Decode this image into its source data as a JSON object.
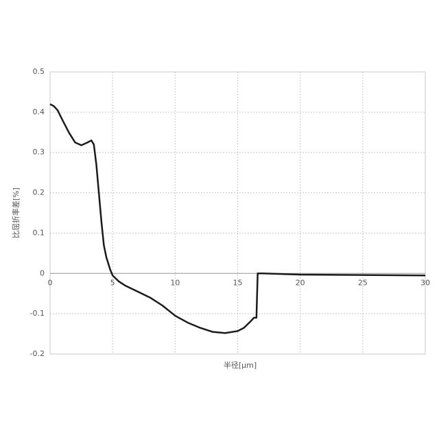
{
  "chart_data": {
    "type": "line",
    "xlabel": "半径[μm]",
    "ylabel": "比屈折率差[%]",
    "x": [
      0,
      0.3,
      0.6,
      1,
      1.5,
      2,
      2.5,
      3,
      3.3,
      3.5,
      3.7,
      3.9,
      4.1,
      4.3,
      4.5,
      4.8,
      5,
      5.5,
      6,
      7,
      8,
      9,
      10,
      11,
      12,
      13,
      14,
      15,
      15.5,
      16,
      16.3,
      16.5,
      16.6,
      17,
      20,
      25,
      30
    ],
    "series": [
      {
        "color": "#1a1a1a",
        "values": [
          0.42,
          0.415,
          0.405,
          0.38,
          0.35,
          0.325,
          0.318,
          0.325,
          0.33,
          0.32,
          0.27,
          0.2,
          0.13,
          0.07,
          0.04,
          0.01,
          -0.005,
          -0.02,
          -0.03,
          -0.045,
          -0.06,
          -0.08,
          -0.105,
          -0.122,
          -0.135,
          -0.145,
          -0.148,
          -0.143,
          -0.135,
          -0.12,
          -0.11,
          -0.11,
          0,
          0,
          -0.003,
          -0.004,
          -0.005
        ]
      }
    ],
    "xlim": [
      0,
      30
    ],
    "xticks": [
      0,
      5,
      10,
      15,
      20,
      25,
      30
    ],
    "ylim": [
      -0.2,
      0.5
    ],
    "yticks": [
      -0.2,
      -0.1,
      0,
      0.1,
      0.2,
      0.3,
      0.4,
      0.5
    ],
    "grid": true
  }
}
